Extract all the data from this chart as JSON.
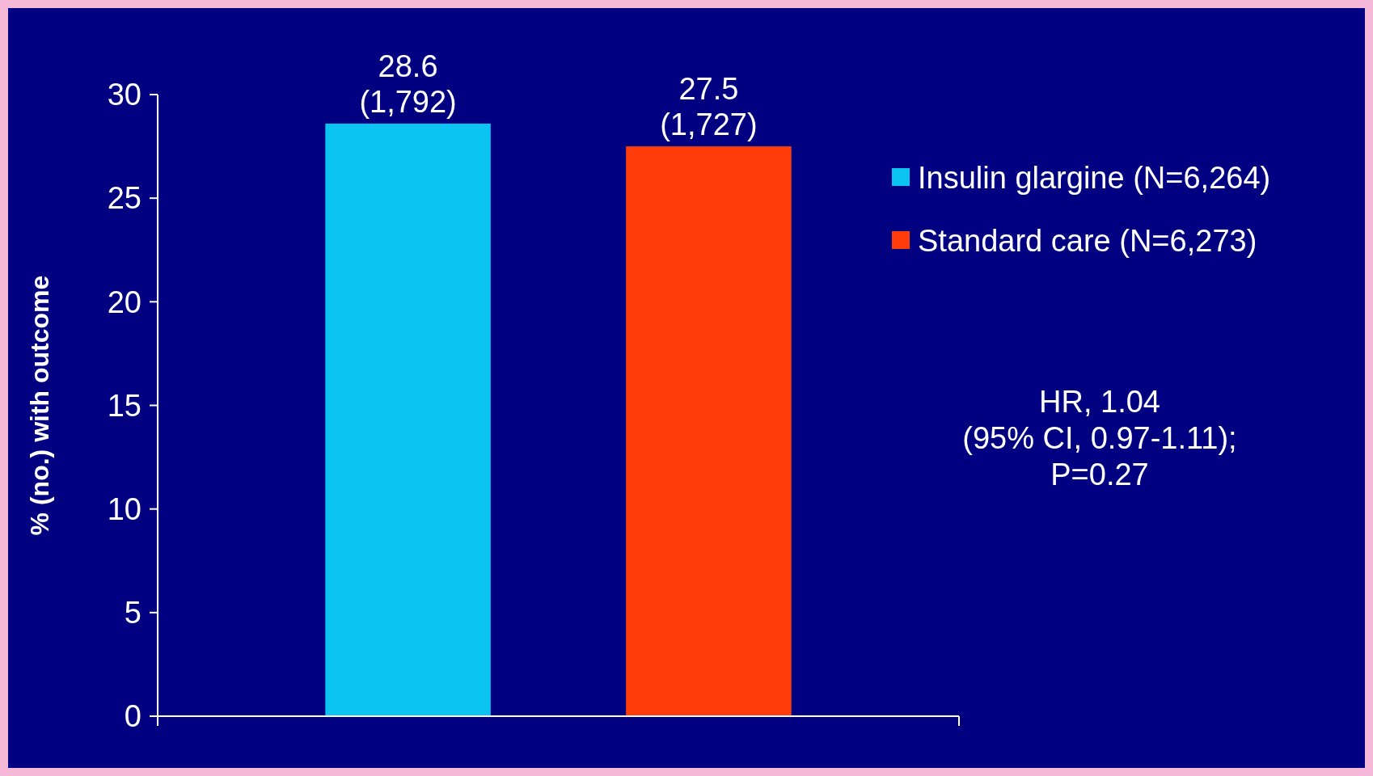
{
  "chart_data": {
    "type": "bar",
    "ylabel": "% (no.) with outcome",
    "categories": [
      null,
      null
    ],
    "series": [
      {
        "name": "Insulin glargine (N=6,264)",
        "color": "#0bc4f2",
        "values": [
          28.6,
          null
        ],
        "value_labels": [
          "28.6 (1,792)",
          null
        ]
      },
      {
        "name": "Standard care (N=6,273)",
        "color": "#ff3c0c",
        "values": [
          null,
          27.5
        ],
        "value_labels": [
          null,
          "27.5 (1,727)"
        ]
      }
    ],
    "ylim": [
      0,
      30
    ],
    "yticks": [
      0,
      5,
      10,
      15,
      20,
      25,
      30
    ],
    "grid": false,
    "legend": "right",
    "annotations": [
      "HR, 1.04",
      "(95% CI, 0.97-1.11);",
      "P=0.27"
    ]
  }
}
